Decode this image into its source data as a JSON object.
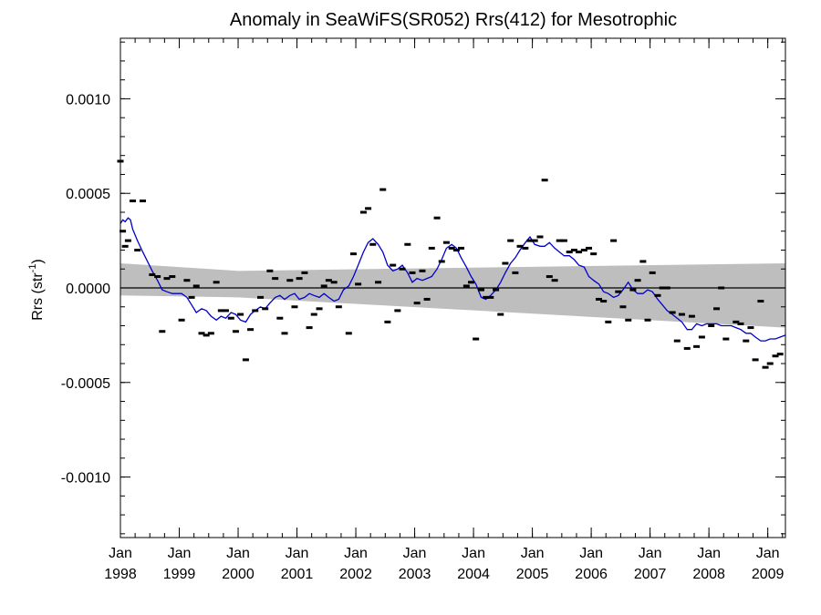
{
  "chart_data": {
    "type": "scatter",
    "title": "Anomaly in SeaWiFS(SR052) Rrs(412) for Mesotrophic",
    "ylabel": "Rrs (str",
    "ylabel_sup": "-1",
    "ylabel_close": ")",
    "ylim": [
      -0.00132,
      0.00132
    ],
    "yticks": [
      {
        "value": 0.001,
        "label": "0.0010"
      },
      {
        "value": 0.0005,
        "label": "0.0005"
      },
      {
        "value": 0.0,
        "label": "0.0000"
      },
      {
        "value": -0.0005,
        "label": "-0.0005"
      },
      {
        "value": -0.001,
        "label": "-0.0010"
      }
    ],
    "xlim": [
      1998.0,
      2009.3
    ],
    "xticks": [
      {
        "value": 1998.0,
        "month": "Jan",
        "year": "1998"
      },
      {
        "value": 1999.0,
        "month": "Jan",
        "year": "1999"
      },
      {
        "value": 2000.0,
        "month": "Jan",
        "year": "2000"
      },
      {
        "value": 2001.0,
        "month": "Jan",
        "year": "2001"
      },
      {
        "value": 2002.0,
        "month": "Jan",
        "year": "2002"
      },
      {
        "value": 2003.0,
        "month": "Jan",
        "year": "2003"
      },
      {
        "value": 2004.0,
        "month": "Jan",
        "year": "2004"
      },
      {
        "value": 2005.0,
        "month": "Jan",
        "year": "2005"
      },
      {
        "value": 2006.0,
        "month": "Jan",
        "year": "2006"
      },
      {
        "value": 2007.0,
        "month": "Jan",
        "year": "2007"
      },
      {
        "value": 2008.0,
        "month": "Jan",
        "year": "2008"
      },
      {
        "value": 2009.0,
        "month": "Jan",
        "year": "2009"
      }
    ],
    "zero_line": 0.0,
    "uncertainty_band": {
      "x": [
        1998.0,
        2000.0,
        2009.3
      ],
      "upper": [
        0.00013,
        9e-05,
        0.00013
      ],
      "lower": [
        -4e-05,
        -5e-05,
        -0.00021
      ],
      "color": "#bebebe"
    },
    "anomaly_points": {
      "color": "#000000",
      "points": [
        [
          1998.0,
          0.00067
        ],
        [
          1998.04,
          0.0003
        ],
        [
          1998.08,
          0.00022
        ],
        [
          1998.13,
          0.00025
        ],
        [
          1998.21,
          0.00046
        ],
        [
          1998.29,
          0.0002
        ],
        [
          1998.38,
          0.00046
        ],
        [
          1998.54,
          7e-05
        ],
        [
          1998.63,
          6e-05
        ],
        [
          1998.71,
          -0.00023
        ],
        [
          1998.79,
          5e-05
        ],
        [
          1998.88,
          6e-05
        ],
        [
          1999.04,
          -0.00017
        ],
        [
          1999.13,
          4e-05
        ],
        [
          1999.21,
          -5e-05
        ],
        [
          1999.29,
          1e-05
        ],
        [
          1999.38,
          -0.00024
        ],
        [
          1999.46,
          -0.00025
        ],
        [
          1999.54,
          -0.00024
        ],
        [
          1999.63,
          3e-05
        ],
        [
          1999.71,
          -0.00012
        ],
        [
          1999.79,
          -0.00012
        ],
        [
          1999.88,
          -0.00016
        ],
        [
          1999.96,
          -0.00023
        ],
        [
          2000.04,
          -0.00014
        ],
        [
          2000.13,
          -0.00038
        ],
        [
          2000.21,
          -0.00022
        ],
        [
          2000.29,
          -0.00012
        ],
        [
          2000.38,
          -5e-05
        ],
        [
          2000.46,
          -0.00011
        ],
        [
          2000.54,
          9e-05
        ],
        [
          2000.63,
          5e-05
        ],
        [
          2000.71,
          -0.00016
        ],
        [
          2000.79,
          -0.00024
        ],
        [
          2000.88,
          4e-05
        ],
        [
          2000.96,
          -0.0001
        ],
        [
          2001.04,
          5e-05
        ],
        [
          2001.13,
          8e-05
        ],
        [
          2001.21,
          -0.00021
        ],
        [
          2001.29,
          -0.00014
        ],
        [
          2001.38,
          -0.00011
        ],
        [
          2001.46,
          1e-05
        ],
        [
          2001.54,
          4e-05
        ],
        [
          2001.63,
          3e-05
        ],
        [
          2001.71,
          -0.0001
        ],
        [
          2001.88,
          -0.00024
        ],
        [
          2001.96,
          0.00018
        ],
        [
          2002.04,
          2e-05
        ],
        [
          2002.13,
          0.0004
        ],
        [
          2002.21,
          0.00042
        ],
        [
          2002.29,
          0.00023
        ],
        [
          2002.38,
          3e-05
        ],
        [
          2002.46,
          0.00052
        ],
        [
          2002.54,
          -0.00018
        ],
        [
          2002.63,
          0.00012
        ],
        [
          2002.71,
          -0.00012
        ],
        [
          2002.79,
          0.0001
        ],
        [
          2002.88,
          0.00023
        ],
        [
          2002.96,
          8e-05
        ],
        [
          2003.04,
          -8e-05
        ],
        [
          2003.13,
          9e-05
        ],
        [
          2003.21,
          -6e-05
        ],
        [
          2003.29,
          0.00021
        ],
        [
          2003.38,
          0.00037
        ],
        [
          2003.46,
          0.00014
        ],
        [
          2003.54,
          0.00024
        ],
        [
          2003.63,
          0.00021
        ],
        [
          2003.71,
          0.0002
        ],
        [
          2003.79,
          0.00021
        ],
        [
          2003.88,
          1e-05
        ],
        [
          2003.96,
          3e-05
        ],
        [
          2004.04,
          -0.00027
        ],
        [
          2004.13,
          -1e-05
        ],
        [
          2004.21,
          -5e-05
        ],
        [
          2004.29,
          -5e-05
        ],
        [
          2004.38,
          -1e-05
        ],
        [
          2004.46,
          -0.00014
        ],
        [
          2004.54,
          0.00013
        ],
        [
          2004.63,
          0.00025
        ],
        [
          2004.71,
          8e-05
        ],
        [
          2004.79,
          0.00022
        ],
        [
          2004.88,
          0.00021
        ],
        [
          2004.96,
          0.00025
        ],
        [
          2005.04,
          0.00025
        ],
        [
          2005.13,
          0.00027
        ],
        [
          2005.21,
          0.00057
        ],
        [
          2005.29,
          6e-05
        ],
        [
          2005.38,
          4e-05
        ],
        [
          2005.46,
          0.00025
        ],
        [
          2005.54,
          0.00025
        ],
        [
          2005.63,
          0.00019
        ],
        [
          2005.71,
          0.0002
        ],
        [
          2005.79,
          0.00019
        ],
        [
          2005.88,
          0.0002
        ],
        [
          2005.96,
          0.00021
        ],
        [
          2006.04,
          0.00018
        ],
        [
          2006.13,
          -6e-05
        ],
        [
          2006.21,
          -7e-05
        ],
        [
          2006.29,
          -0.00018
        ],
        [
          2006.38,
          0.00025
        ],
        [
          2006.46,
          -2e-05
        ],
        [
          2006.54,
          -0.0001
        ],
        [
          2006.63,
          -0.00017
        ],
        [
          2006.71,
          -1e-05
        ],
        [
          2006.79,
          4e-05
        ],
        [
          2006.88,
          0.00014
        ],
        [
          2006.96,
          -0.00017
        ],
        [
          2007.04,
          8e-05
        ],
        [
          2007.13,
          -4e-05
        ],
        [
          2007.21,
          0.0
        ],
        [
          2007.29,
          0.0
        ],
        [
          2007.38,
          -0.00013
        ],
        [
          2007.46,
          -0.00028
        ],
        [
          2007.54,
          -0.00014
        ],
        [
          2007.63,
          -0.00032
        ],
        [
          2007.71,
          -0.00015
        ],
        [
          2007.79,
          -0.00031
        ],
        [
          2007.88,
          -0.00026
        ],
        [
          2008.04,
          -0.0002
        ],
        [
          2008.13,
          -0.00011
        ],
        [
          2008.21,
          0.0
        ],
        [
          2008.29,
          -0.00027
        ],
        [
          2008.46,
          -0.00018
        ],
        [
          2008.54,
          -0.00019
        ],
        [
          2008.63,
          -0.00028
        ],
        [
          2008.71,
          -0.00021
        ],
        [
          2008.79,
          -0.00038
        ],
        [
          2008.88,
          -7e-05
        ],
        [
          2008.96,
          -0.00042
        ],
        [
          2009.04,
          -0.0004
        ],
        [
          2009.13,
          -0.00036
        ],
        [
          2009.21,
          -0.00035
        ]
      ]
    },
    "running_mean": {
      "color": "#0000cc",
      "x": [
        1998.0,
        1998.04,
        1998.08,
        1998.13,
        1998.17,
        1998.21,
        1998.29,
        1998.38,
        1998.46,
        1998.54,
        1998.63,
        1998.71,
        1998.79,
        1998.88,
        1998.96,
        1999.04,
        1999.13,
        1999.21,
        1999.29,
        1999.38,
        1999.46,
        1999.54,
        1999.63,
        1999.71,
        1999.79,
        1999.88,
        1999.96,
        2000.04,
        2000.13,
        2000.21,
        2000.29,
        2000.38,
        2000.46,
        2000.54,
        2000.63,
        2000.71,
        2000.79,
        2000.88,
        2000.96,
        2001.04,
        2001.13,
        2001.21,
        2001.29,
        2001.38,
        2001.46,
        2001.54,
        2001.63,
        2001.71,
        2001.79,
        2001.88,
        2001.96,
        2002.04,
        2002.13,
        2002.21,
        2002.29,
        2002.38,
        2002.46,
        2002.54,
        2002.63,
        2002.71,
        2002.79,
        2002.88,
        2002.96,
        2003.04,
        2003.13,
        2003.21,
        2003.29,
        2003.38,
        2003.46,
        2003.54,
        2003.63,
        2003.71,
        2003.79,
        2003.88,
        2003.96,
        2004.04,
        2004.13,
        2004.21,
        2004.29,
        2004.38,
        2004.46,
        2004.54,
        2004.63,
        2004.71,
        2004.79,
        2004.88,
        2004.96,
        2005.04,
        2005.13,
        2005.21,
        2005.29,
        2005.38,
        2005.46,
        2005.54,
        2005.63,
        2005.71,
        2005.79,
        2005.88,
        2005.96,
        2006.04,
        2006.13,
        2006.21,
        2006.29,
        2006.38,
        2006.46,
        2006.54,
        2006.63,
        2006.71,
        2006.79,
        2006.88,
        2006.96,
        2007.04,
        2007.13,
        2007.21,
        2007.29,
        2007.38,
        2007.46,
        2007.54,
        2007.63,
        2007.71,
        2007.79,
        2007.88,
        2007.96,
        2008.04,
        2008.13,
        2008.21,
        2008.29,
        2008.38,
        2008.46,
        2008.54,
        2008.63,
        2008.71,
        2008.79,
        2008.88,
        2008.96,
        2009.04,
        2009.13,
        2009.21,
        2009.3
      ],
      "y": [
        0.00034,
        0.00036,
        0.00035,
        0.00037,
        0.00036,
        0.00031,
        0.00025,
        0.00019,
        0.00014,
        9e-05,
        4e-05,
        -1e-05,
        -2e-05,
        -3e-05,
        -3e-05,
        -3e-05,
        -5e-05,
        -9e-05,
        -0.00013,
        -0.00011,
        -0.00012,
        -0.00015,
        -0.00017,
        -0.00015,
        -0.00016,
        -0.00013,
        -0.00014,
        -0.00017,
        -0.00018,
        -0.00014,
        -0.00012,
        -0.0001,
        -0.00011,
        -8e-05,
        -5e-05,
        -4e-05,
        -6e-05,
        -4e-05,
        -3e-05,
        -6e-05,
        -5e-05,
        -3e-05,
        -4e-05,
        -5e-05,
        -3e-05,
        -5e-05,
        -7e-05,
        -6e-05,
        -1e-05,
        1e-05,
        6e-05,
        0.00012,
        0.00019,
        0.00024,
        0.00026,
        0.00023,
        0.00019,
        0.00012,
        9e-05,
        0.0001,
        0.00012,
        8e-05,
        3e-05,
        5e-05,
        4e-05,
        5e-05,
        6e-05,
        0.0001,
        0.00015,
        0.00021,
        0.00023,
        0.00021,
        0.00016,
        0.00011,
        6e-05,
        2e-05,
        -5e-05,
        -6e-05,
        -4e-05,
        -1e-05,
        3e-05,
        8e-05,
        0.00013,
        0.00016,
        0.0002,
        0.00024,
        0.00027,
        0.00023,
        0.00022,
        0.00022,
        0.00024,
        0.00021,
        0.00019,
        0.00017,
        0.00017,
        0.00015,
        0.00012,
        0.00011,
        6e-05,
        4e-05,
        2e-05,
        -2e-05,
        -3e-05,
        -5e-05,
        -4e-05,
        -1e-05,
        3e-05,
        -1e-05,
        -3e-05,
        -3e-05,
        -1e-05,
        -2e-05,
        -6e-05,
        -9e-05,
        -0.00012,
        -0.00014,
        -0.00016,
        -0.00018,
        -0.00022,
        -0.00022,
        -0.00019,
        -0.0002,
        -0.00019,
        -0.00019,
        -0.00019,
        -0.0002,
        -0.0002,
        -0.0002,
        -0.00021,
        -0.00022,
        -0.00024,
        -0.00024,
        -0.00026,
        -0.00028,
        -0.00028,
        -0.00027,
        -0.00027,
        -0.00026,
        -0.00025
      ]
    },
    "grid": false
  }
}
